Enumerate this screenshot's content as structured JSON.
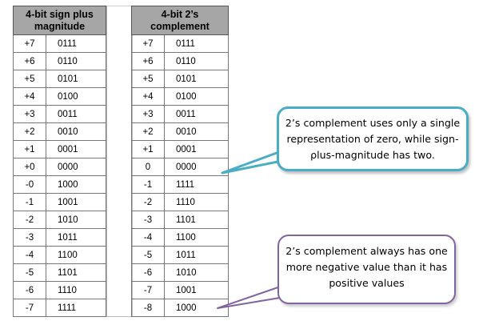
{
  "left_table": {
    "header": "4-bit sign plus magnitude",
    "header_line1": "4-bit sign plus",
    "header_line2": "magnitude",
    "rows": [
      {
        "dec": "+7",
        "bin": "0111"
      },
      {
        "dec": "+6",
        "bin": "0110"
      },
      {
        "dec": "+5",
        "bin": "0101"
      },
      {
        "dec": "+4",
        "bin": "0100"
      },
      {
        "dec": "+3",
        "bin": "0011"
      },
      {
        "dec": "+2",
        "bin": "0010"
      },
      {
        "dec": "+1",
        "bin": "0001"
      },
      {
        "dec": "+0",
        "bin": "0000"
      },
      {
        "dec": "-0",
        "bin": "1000"
      },
      {
        "dec": "-1",
        "bin": "1001"
      },
      {
        "dec": "-2",
        "bin": "1010"
      },
      {
        "dec": "-3",
        "bin": "1011"
      },
      {
        "dec": "-4",
        "bin": "1100"
      },
      {
        "dec": "-5",
        "bin": "1101"
      },
      {
        "dec": "-6",
        "bin": "1110"
      },
      {
        "dec": "-7",
        "bin": "1111"
      }
    ]
  },
  "right_table": {
    "header": "4-bit 2’s complement",
    "header_line1": "4-bit 2’s",
    "header_line2": "complement",
    "rows": [
      {
        "dec": "+7",
        "bin": "0111"
      },
      {
        "dec": "+6",
        "bin": "0110"
      },
      {
        "dec": "+5",
        "bin": "0101"
      },
      {
        "dec": "+4",
        "bin": "0100"
      },
      {
        "dec": "+3",
        "bin": "0011"
      },
      {
        "dec": "+2",
        "bin": "0010"
      },
      {
        "dec": "+1",
        "bin": "0001"
      },
      {
        "dec": "0",
        "bin": "0000"
      },
      {
        "dec": "-1",
        "bin": "1111"
      },
      {
        "dec": "-2",
        "bin": "1110"
      },
      {
        "dec": "-3",
        "bin": "1101"
      },
      {
        "dec": "-4",
        "bin": "1100"
      },
      {
        "dec": "-5",
        "bin": "1011"
      },
      {
        "dec": "-6",
        "bin": "1010"
      },
      {
        "dec": "-7",
        "bin": "1001"
      },
      {
        "dec": "-8",
        "bin": "1000"
      }
    ]
  },
  "callouts": {
    "zero": {
      "text": "2’s complement uses only a single representation of zero, while sign-plus-magnitude has two.",
      "line1": "2’s complement uses only a single",
      "line2": "representation of zero, while sign-",
      "line3": "plus-magnitude has two.",
      "border_color": "#4bacc6"
    },
    "negative": {
      "text": "2’s complement always has one more negative value than it has positive values",
      "line1": "2’s complement always has one",
      "line2": "more negative value than it has",
      "line3": "positive values",
      "border_color": "#8064a2"
    }
  },
  "colors": {
    "header_bg": "#a6a6a6",
    "grid": "#777777"
  }
}
